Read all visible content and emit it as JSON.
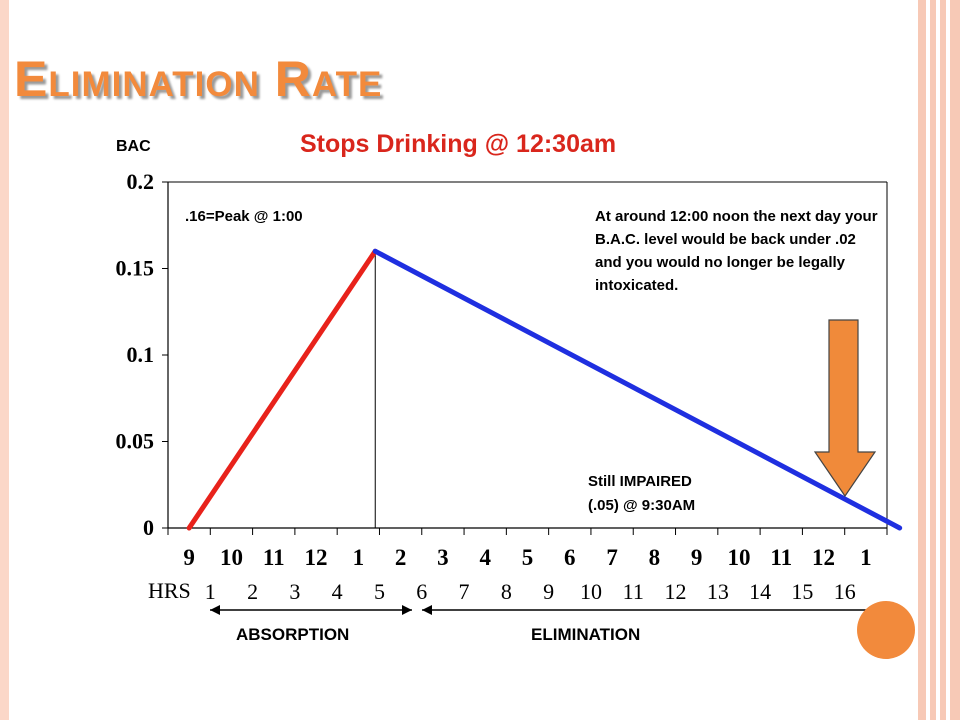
{
  "slide": {
    "title": "Elimination Rate",
    "accent_color": "#f28a3c",
    "border_color": "#f7c9b6"
  },
  "chart_data": {
    "type": "line",
    "title": "Stops Drinking @ 12:30am",
    "ylabel": "BAC",
    "ylim": [
      0,
      0.2
    ],
    "yticks": [
      "0",
      "0.05",
      "0.1",
      "0.15",
      "0.2"
    ],
    "clock_ticks": [
      "9",
      "10",
      "11",
      "12",
      "1",
      "2",
      "3",
      "4",
      "5",
      "6",
      "7",
      "8",
      "9",
      "10",
      "11",
      "12",
      "1"
    ],
    "hrs_label": "HRS",
    "hrs_ticks": [
      "1",
      "2",
      "3",
      "4",
      "5",
      "6",
      "7",
      "8",
      "9",
      "10",
      "11",
      "12",
      "13",
      "14",
      "15",
      "16"
    ],
    "series": [
      {
        "color": "#e8221b",
        "x": [
          0,
          4.4
        ],
        "y": [
          0,
          0.16
        ]
      },
      {
        "color": "#1f2fe0",
        "x": [
          4.4,
          16.8
        ],
        "y": [
          0.16,
          0
        ]
      }
    ],
    "peak_marker_x": 4.4,
    "annotations": {
      "peak": ".16=Peak @ 1:00",
      "noon": "At around 12:00 noon the next day your B.A.C. level would be back under .02 and you would no longer be legally intoxicated.",
      "impaired_line1": "Still IMPAIRED",
      "impaired_line2": "(.05) @ 9:30AM"
    },
    "phases": {
      "absorption": "ABSORPTION",
      "elimination": "ELIMINATION"
    },
    "arrow_color": "#f08a3a"
  }
}
